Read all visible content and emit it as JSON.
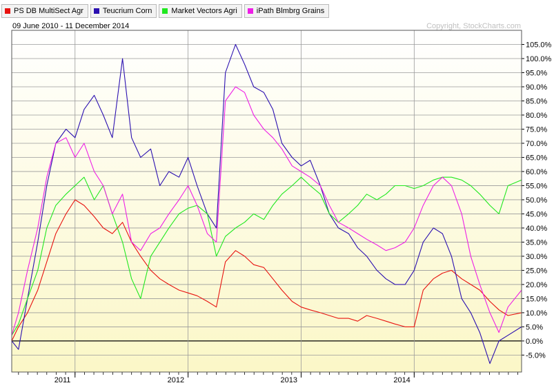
{
  "legend": [
    {
      "label": "PS DB MultiSect  Agr",
      "color": "#e8120f"
    },
    {
      "label": "Teucrium Corn",
      "color": "#2a0fb0"
    },
    {
      "label": "Market Vectors Agri",
      "color": "#1fe81f"
    },
    {
      "label": "iPath Blmbrg Grains",
      "color": "#ee1ee6"
    }
  ],
  "date_range": "09 June 2010 - 11 December 2014",
  "copyright": "Copyright, StockCharts.com",
  "chart_data": {
    "type": "line",
    "ylim": [
      -11,
      110
    ],
    "x_range": [
      2010.44,
      2014.95
    ],
    "y_ticks": [
      "-5.0%",
      "0.0%",
      "5.0%",
      "10.0%",
      "15.0%",
      "20.0%",
      "25.0%",
      "30.0%",
      "35.0%",
      "40.0%",
      "45.0%",
      "50.0%",
      "55.0%",
      "60.0%",
      "65.0%",
      "70.0%",
      "75.0%",
      "80.0%",
      "85.0%",
      "90.0%",
      "95.0%",
      "100.0%",
      "105.0%"
    ],
    "y_tick_values": [
      -5,
      0,
      5,
      10,
      15,
      20,
      25,
      30,
      35,
      40,
      45,
      50,
      55,
      60,
      65,
      70,
      75,
      80,
      85,
      90,
      95,
      100,
      105
    ],
    "x_ticks": [
      {
        "label": "2011",
        "x": 2011.0
      },
      {
        "label": "2012",
        "x": 2012.0
      },
      {
        "label": "2013",
        "x": 2013.0
      },
      {
        "label": "2014",
        "x": 2014.0
      }
    ],
    "series": [
      {
        "name": "PS DB MultiSect  Agr",
        "color": "#e8120f",
        "x": [
          2010.44,
          2010.5,
          2010.58,
          2010.67,
          2010.75,
          2010.83,
          2010.92,
          2011.0,
          2011.08,
          2011.17,
          2011.25,
          2011.33,
          2011.42,
          2011.5,
          2011.58,
          2011.67,
          2011.75,
          2011.83,
          2011.92,
          2012.0,
          2012.08,
          2012.17,
          2012.25,
          2012.33,
          2012.42,
          2012.5,
          2012.58,
          2012.67,
          2012.75,
          2012.83,
          2012.92,
          2013.0,
          2013.08,
          2013.17,
          2013.25,
          2013.33,
          2013.42,
          2013.5,
          2013.58,
          2013.67,
          2013.75,
          2013.83,
          2013.92,
          2014.0,
          2014.08,
          2014.17,
          2014.25,
          2014.33,
          2014.42,
          2014.5,
          2014.58,
          2014.67,
          2014.75,
          2014.83,
          2014.95
        ],
        "y": [
          0,
          5,
          10,
          18,
          28,
          38,
          45,
          50,
          48,
          44,
          40,
          38,
          42,
          35,
          30,
          25,
          22,
          20,
          18,
          17,
          16,
          14,
          12,
          28,
          32,
          30,
          27,
          26,
          22,
          18,
          14,
          12,
          11,
          10,
          9,
          8,
          8,
          7,
          9,
          8,
          7,
          6,
          5,
          5,
          18,
          22,
          24,
          25,
          22,
          20,
          18,
          14,
          11,
          9,
          10
        ]
      },
      {
        "name": "Teucrium Corn",
        "color": "#2a0fb0",
        "x": [
          2010.44,
          2010.5,
          2010.58,
          2010.67,
          2010.75,
          2010.83,
          2010.92,
          2011.0,
          2011.08,
          2011.17,
          2011.25,
          2011.33,
          2011.42,
          2011.5,
          2011.58,
          2011.67,
          2011.75,
          2011.83,
          2011.92,
          2012.0,
          2012.08,
          2012.17,
          2012.25,
          2012.33,
          2012.42,
          2012.5,
          2012.58,
          2012.67,
          2012.75,
          2012.83,
          2012.92,
          2013.0,
          2013.08,
          2013.17,
          2013.25,
          2013.33,
          2013.42,
          2013.5,
          2013.58,
          2013.67,
          2013.75,
          2013.83,
          2013.92,
          2014.0,
          2014.08,
          2014.17,
          2014.25,
          2014.33,
          2014.42,
          2014.5,
          2014.58,
          2014.67,
          2014.75,
          2014.83,
          2014.95
        ],
        "y": [
          0,
          -3,
          15,
          35,
          55,
          70,
          75,
          72,
          82,
          87,
          80,
          72,
          100,
          72,
          65,
          68,
          55,
          60,
          58,
          65,
          55,
          45,
          40,
          95,
          105,
          98,
          90,
          88,
          82,
          70,
          65,
          62,
          64,
          55,
          45,
          40,
          38,
          33,
          30,
          25,
          22,
          20,
          20,
          25,
          35,
          40,
          38,
          30,
          15,
          10,
          3,
          -8,
          0,
          2,
          5
        ]
      },
      {
        "name": "Market Vectors Agri",
        "color": "#1fe81f",
        "x": [
          2010.44,
          2010.5,
          2010.58,
          2010.67,
          2010.75,
          2010.83,
          2010.92,
          2011.0,
          2011.08,
          2011.17,
          2011.25,
          2011.33,
          2011.42,
          2011.5,
          2011.58,
          2011.67,
          2011.75,
          2011.83,
          2011.92,
          2012.0,
          2012.08,
          2012.17,
          2012.25,
          2012.33,
          2012.42,
          2012.5,
          2012.58,
          2012.67,
          2012.75,
          2012.83,
          2012.92,
          2013.0,
          2013.08,
          2013.17,
          2013.25,
          2013.33,
          2013.42,
          2013.5,
          2013.58,
          2013.67,
          2013.75,
          2013.83,
          2013.92,
          2014.0,
          2014.08,
          2014.17,
          2014.25,
          2014.33,
          2014.42,
          2014.5,
          2014.58,
          2014.67,
          2014.75,
          2014.83,
          2014.95
        ],
        "y": [
          2,
          6,
          15,
          25,
          40,
          48,
          52,
          55,
          58,
          50,
          55,
          45,
          35,
          22,
          15,
          30,
          35,
          40,
          45,
          47,
          48,
          45,
          30,
          37,
          40,
          42,
          45,
          43,
          48,
          52,
          55,
          58,
          55,
          52,
          45,
          42,
          45,
          48,
          52,
          50,
          52,
          55,
          55,
          54,
          55,
          57,
          58,
          58,
          57,
          55,
          52,
          48,
          45,
          55,
          57
        ]
      },
      {
        "name": "iPath Blmbrg Grains",
        "color": "#ee1ee6",
        "x": [
          2010.44,
          2010.5,
          2010.58,
          2010.67,
          2010.75,
          2010.83,
          2010.92,
          2011.0,
          2011.08,
          2011.17,
          2011.25,
          2011.33,
          2011.42,
          2011.5,
          2011.58,
          2011.67,
          2011.75,
          2011.83,
          2011.92,
          2012.0,
          2012.08,
          2012.17,
          2012.25,
          2012.33,
          2012.42,
          2012.5,
          2012.58,
          2012.67,
          2012.75,
          2012.83,
          2012.92,
          2013.0,
          2013.08,
          2013.17,
          2013.25,
          2013.33,
          2013.42,
          2013.5,
          2013.58,
          2013.67,
          2013.75,
          2013.83,
          2013.92,
          2014.0,
          2014.08,
          2014.17,
          2014.25,
          2014.33,
          2014.42,
          2014.5,
          2014.58,
          2014.67,
          2014.75,
          2014.83,
          2014.95
        ],
        "y": [
          2,
          10,
          25,
          40,
          58,
          70,
          72,
          65,
          70,
          60,
          55,
          45,
          52,
          35,
          32,
          38,
          40,
          45,
          50,
          55,
          48,
          38,
          35,
          85,
          90,
          88,
          80,
          75,
          72,
          68,
          62,
          60,
          58,
          55,
          48,
          42,
          40,
          38,
          36,
          34,
          32,
          33,
          35,
          40,
          48,
          55,
          58,
          55,
          45,
          30,
          20,
          10,
          3,
          12,
          18
        ]
      }
    ]
  }
}
